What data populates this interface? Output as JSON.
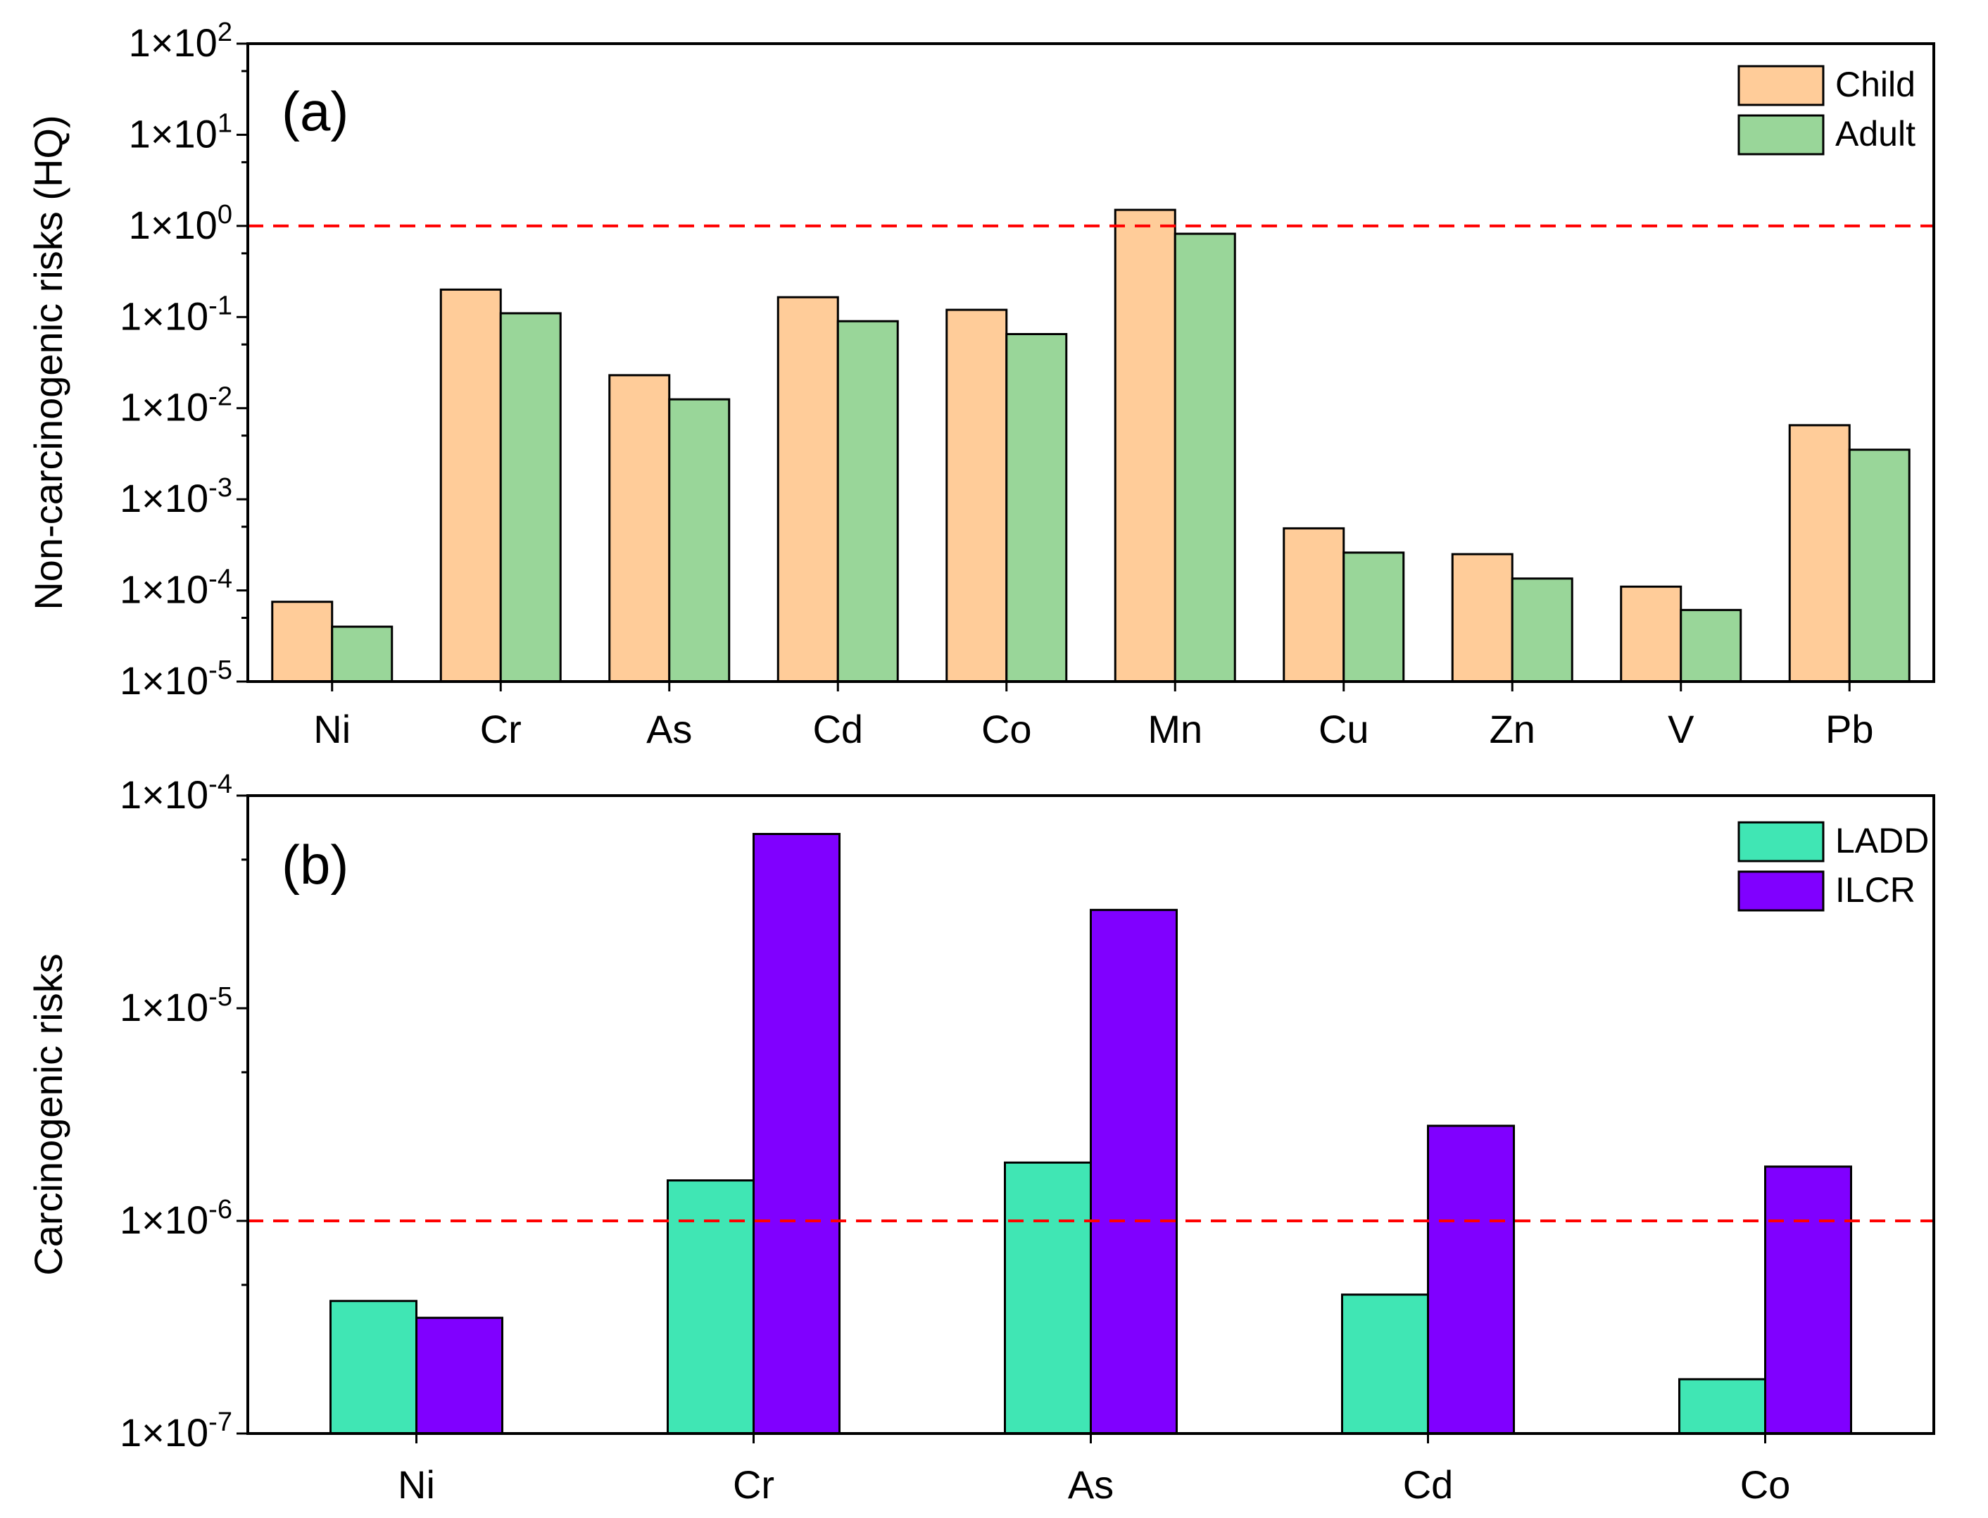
{
  "colors": {
    "child": "#ffcc99",
    "adult": "#99d699",
    "ladd": "#40e6b4",
    "ilcr": "#8000ff",
    "threshold": "#ff0000",
    "axis": "#000000"
  },
  "chart_data": [
    {
      "type": "bar",
      "panel_label": "(a)",
      "title": "",
      "xlabel": "",
      "ylabel": "Non-carcinogenic risks (HQ)",
      "yscale": "log",
      "ylim_exponents": [
        -5,
        2
      ],
      "ytick_labels": [
        {
          "exp": 2,
          "base": "1×10",
          "sup": "2"
        },
        {
          "exp": 1,
          "base": "1×10",
          "sup": "1"
        },
        {
          "exp": 0,
          "base": "1×10",
          "sup": "0"
        },
        {
          "exp": -1,
          "base": "1×10",
          "sup": "-1"
        },
        {
          "exp": -2,
          "base": "1×10",
          "sup": "-2"
        },
        {
          "exp": -3,
          "base": "1×10",
          "sup": "-3"
        },
        {
          "exp": -4,
          "base": "1×10",
          "sup": "-4"
        },
        {
          "exp": -5,
          "base": "1×10",
          "sup": "-5"
        }
      ],
      "categories": [
        "Ni",
        "Cr",
        "As",
        "Cd",
        "Co",
        "Mn",
        "Cu",
        "Zn",
        "V",
        "Pb"
      ],
      "series": [
        {
          "name": "Child",
          "color_key": "child",
          "values": [
            7.5e-05,
            0.2,
            0.023,
            0.165,
            0.12,
            1.5,
            0.00048,
            0.00025,
            0.00011,
            0.0065
          ]
        },
        {
          "name": "Adult",
          "color_key": "adult",
          "values": [
            4e-05,
            0.11,
            0.0125,
            0.09,
            0.065,
            0.82,
            0.00026,
            0.000135,
            6.1e-05,
            0.0035
          ]
        }
      ],
      "threshold": 1,
      "legend_position": "top-right"
    },
    {
      "type": "bar",
      "panel_label": "(b)",
      "title": "",
      "xlabel": "",
      "ylabel": "Carcinogenic risks",
      "yscale": "log",
      "ylim_exponents": [
        -7,
        -4
      ],
      "ytick_labels": [
        {
          "exp": -4,
          "base": "1×10",
          "sup": "-4"
        },
        {
          "exp": -5,
          "base": "1×10",
          "sup": "-5"
        },
        {
          "exp": -6,
          "base": "1×10",
          "sup": "-6"
        },
        {
          "exp": -7,
          "base": "1×10",
          "sup": "-7"
        }
      ],
      "categories": [
        "Ni",
        "Cr",
        "As",
        "Cd",
        "Co"
      ],
      "series": [
        {
          "name": "LADD",
          "color_key": "ladd",
          "values": [
            4.2e-07,
            1.55e-06,
            1.88e-06,
            4.5e-07,
            1.8e-07
          ]
        },
        {
          "name": "ILCR",
          "color_key": "ilcr",
          "values": [
            3.5e-07,
            6.6e-05,
            2.9e-05,
            2.8e-06,
            1.8e-06
          ]
        }
      ],
      "threshold": 1e-06,
      "legend_position": "top-right"
    }
  ]
}
